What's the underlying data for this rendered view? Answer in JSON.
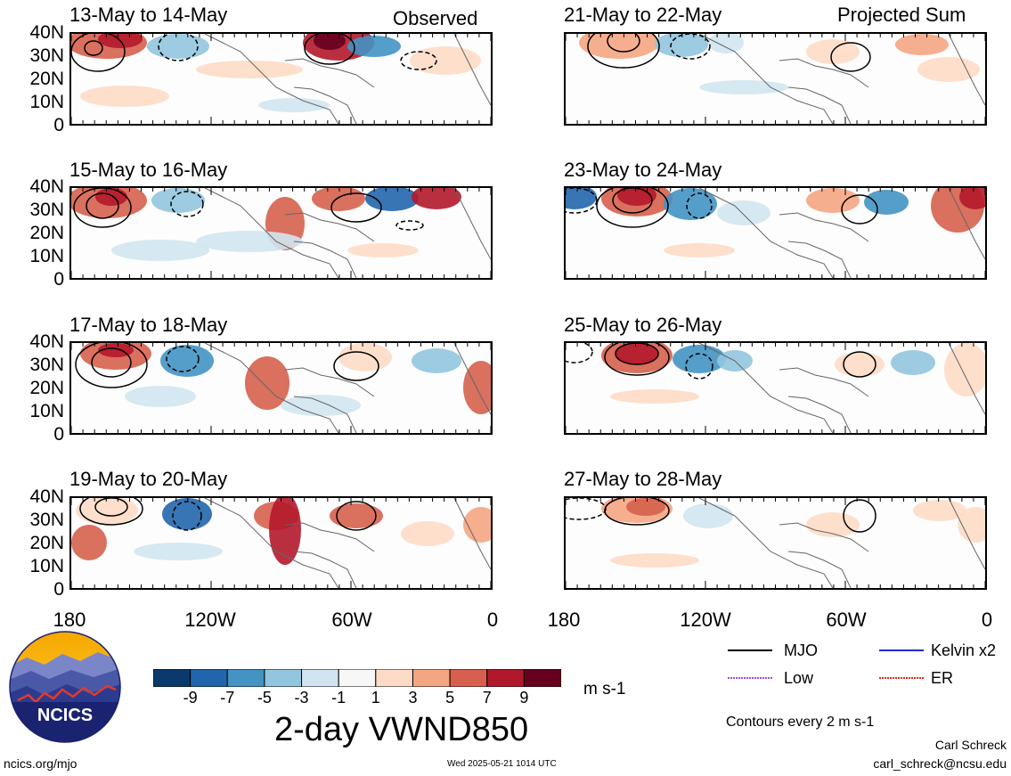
{
  "columns": {
    "left_label": "Observed",
    "right_label": "Projected Sum"
  },
  "panels_left": [
    {
      "title": "13-May to 14-May"
    },
    {
      "title": "15-May to 16-May"
    },
    {
      "title": "17-May to 18-May"
    },
    {
      "title": "19-May to 20-May"
    }
  ],
  "panels_right": [
    {
      "title": "21-May to 22-May"
    },
    {
      "title": "23-May to 24-May"
    },
    {
      "title": "25-May to 26-May"
    },
    {
      "title": "27-May to 28-May"
    }
  ],
  "lat_ticks": [
    "40N",
    "30N",
    "20N",
    "10N",
    "0"
  ],
  "lon_ticks": [
    "180",
    "120W",
    "60W",
    "0"
  ],
  "colorbar": {
    "labels": [
      "-9",
      "-7",
      "-5",
      "-3",
      "-1",
      "1",
      "3",
      "5",
      "7",
      "9"
    ],
    "colors": [
      "#0a3a6b",
      "#2166ac",
      "#4393c3",
      "#92c5de",
      "#d1e5f0",
      "#f7f7f7",
      "#fddbc7",
      "#f4a582",
      "#d6604d",
      "#b2182b",
      "#67001f"
    ],
    "units": "m s-1"
  },
  "main_title": "2-day VWND850",
  "line_legend": [
    {
      "label": "MJO",
      "color": "#000000"
    },
    {
      "label": "Kelvin x2",
      "color": "#1f2bd6"
    },
    {
      "label": "Low",
      "color": "#a24cd6"
    },
    {
      "label": "ER",
      "color": "#e0261b"
    }
  ],
  "contour_note": "Contours every 2 m s-1",
  "logo": {
    "text": "NCICS"
  },
  "footer": {
    "url": "ncics.org/mjo",
    "timestamp": "Wed 2025-05-21 1014 UTC",
    "author": "Carl Schreck",
    "email": "carl_schreck@ncsu.edu"
  }
}
